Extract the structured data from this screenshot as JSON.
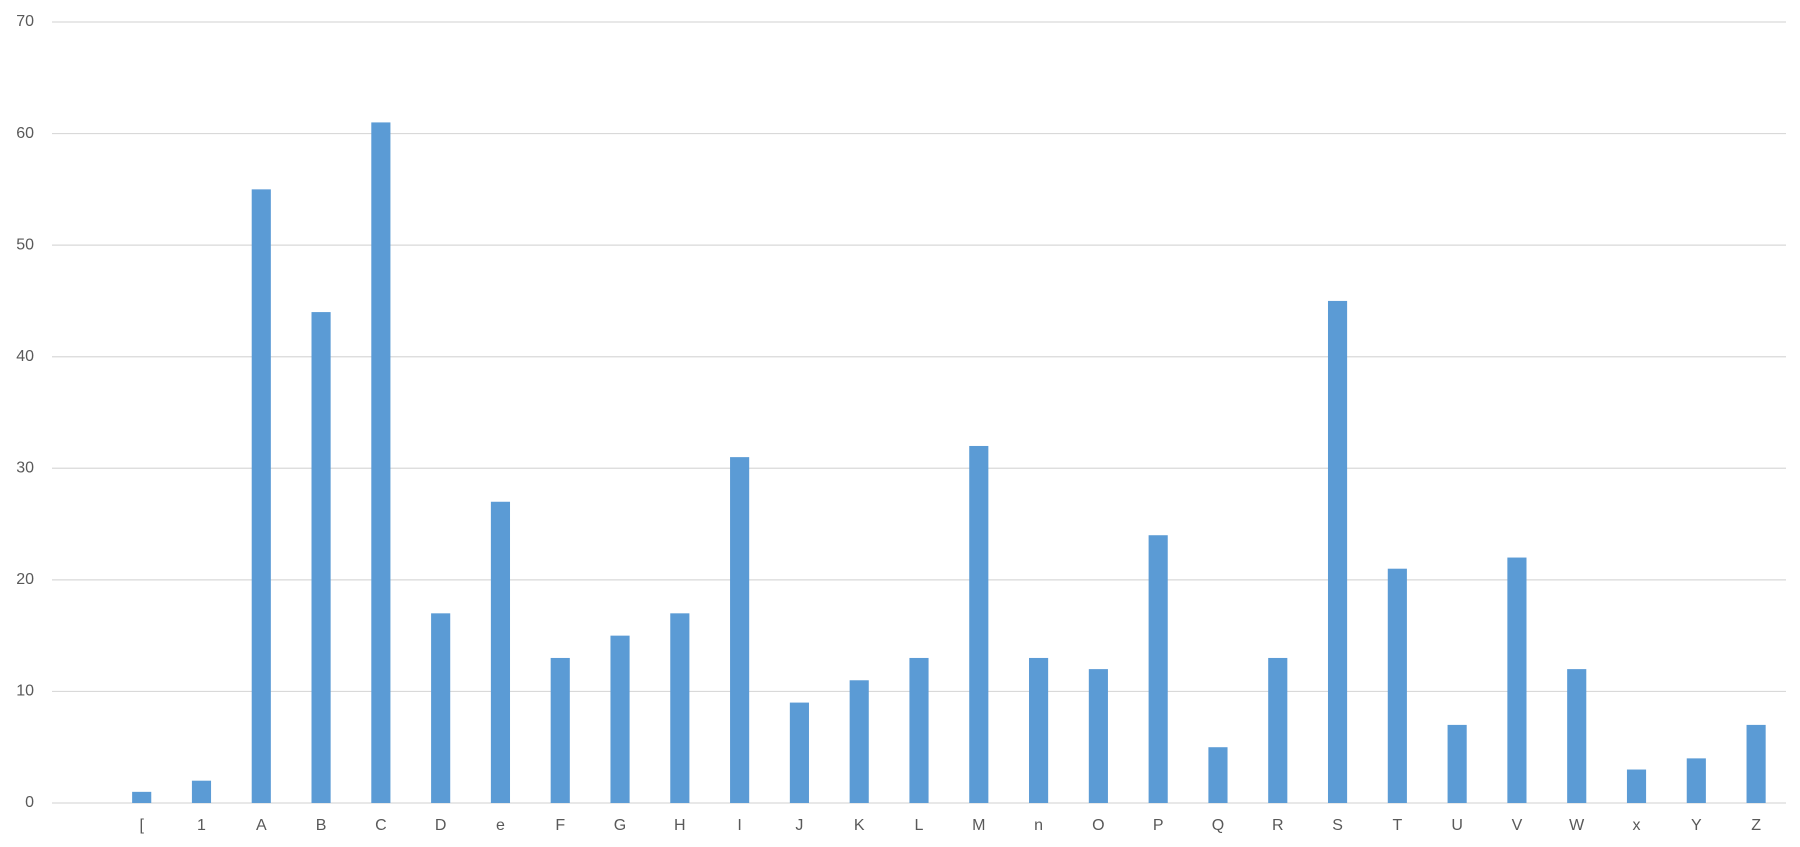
{
  "chart_data": {
    "type": "bar",
    "categories": [
      null,
      "[",
      "1",
      "A",
      "B",
      "C",
      "D",
      "e",
      "F",
      "G",
      "H",
      "I",
      "J",
      "K",
      "L",
      "M",
      "n",
      "O",
      "P",
      "Q",
      "R",
      "S",
      "T",
      "U",
      "V",
      "W",
      "x",
      "Y",
      "Z"
    ],
    "values": [
      null,
      1,
      2,
      55,
      44,
      61,
      17,
      27,
      13,
      15,
      17,
      31,
      9,
      11,
      13,
      32,
      13,
      12,
      24,
      5,
      13,
      45,
      21,
      7,
      22,
      12,
      3,
      4,
      7
    ],
    "color": "#5b9bd5",
    "ylim": [
      0,
      70
    ],
    "yticks": [
      0,
      10,
      20,
      30,
      40,
      50,
      60,
      70
    ],
    "grid": true
  }
}
